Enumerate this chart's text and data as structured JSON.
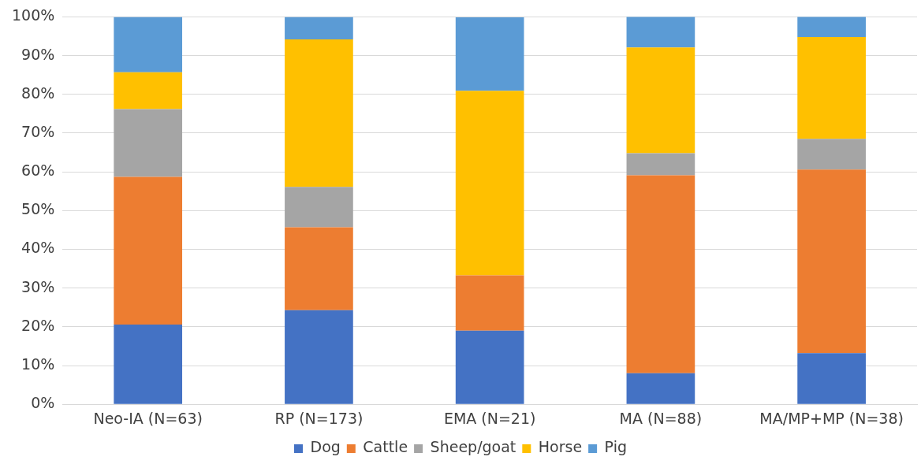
{
  "chart_data": {
    "type": "bar",
    "stacked": true,
    "categories": [
      "Neo-IA (N=63)",
      "RP (N=173)",
      "EMA (N=21)",
      "MA (N=88)",
      "MA/MP+MP (N=38)"
    ],
    "series": [
      {
        "name": "Dog",
        "color": "#4472c4",
        "values": [
          20.6,
          24.3,
          19.0,
          8.0,
          13.2
        ]
      },
      {
        "name": "Cattle",
        "color": "#ed7d31",
        "values": [
          38.1,
          21.4,
          14.3,
          51.1,
          47.4
        ]
      },
      {
        "name": "Sheep/goat",
        "color": "#a5a5a5",
        "values": [
          17.5,
          10.4,
          0,
          5.7,
          7.9
        ]
      },
      {
        "name": "Horse",
        "color": "#ffc000",
        "values": [
          9.5,
          38.1,
          47.6,
          27.3,
          26.3
        ]
      },
      {
        "name": "Pig",
        "color": "#5b9bd5",
        "values": [
          14.3,
          5.8,
          19.0,
          8.0,
          5.3
        ]
      }
    ],
    "ylim": [
      0,
      100
    ],
    "yticks": [
      {
        "value": 0,
        "label": "0%"
      },
      {
        "value": 10,
        "label": "10%"
      },
      {
        "value": 20,
        "label": "20%"
      },
      {
        "value": 30,
        "label": "30%"
      },
      {
        "value": 40,
        "label": "40%"
      },
      {
        "value": 50,
        "label": "50%"
      },
      {
        "value": 60,
        "label": "60%"
      },
      {
        "value": 70,
        "label": "70%"
      },
      {
        "value": 80,
        "label": "80%"
      },
      {
        "value": 90,
        "label": "90%"
      },
      {
        "value": 100,
        "label": "100%"
      }
    ],
    "grid": "y",
    "legend": "bottom"
  }
}
